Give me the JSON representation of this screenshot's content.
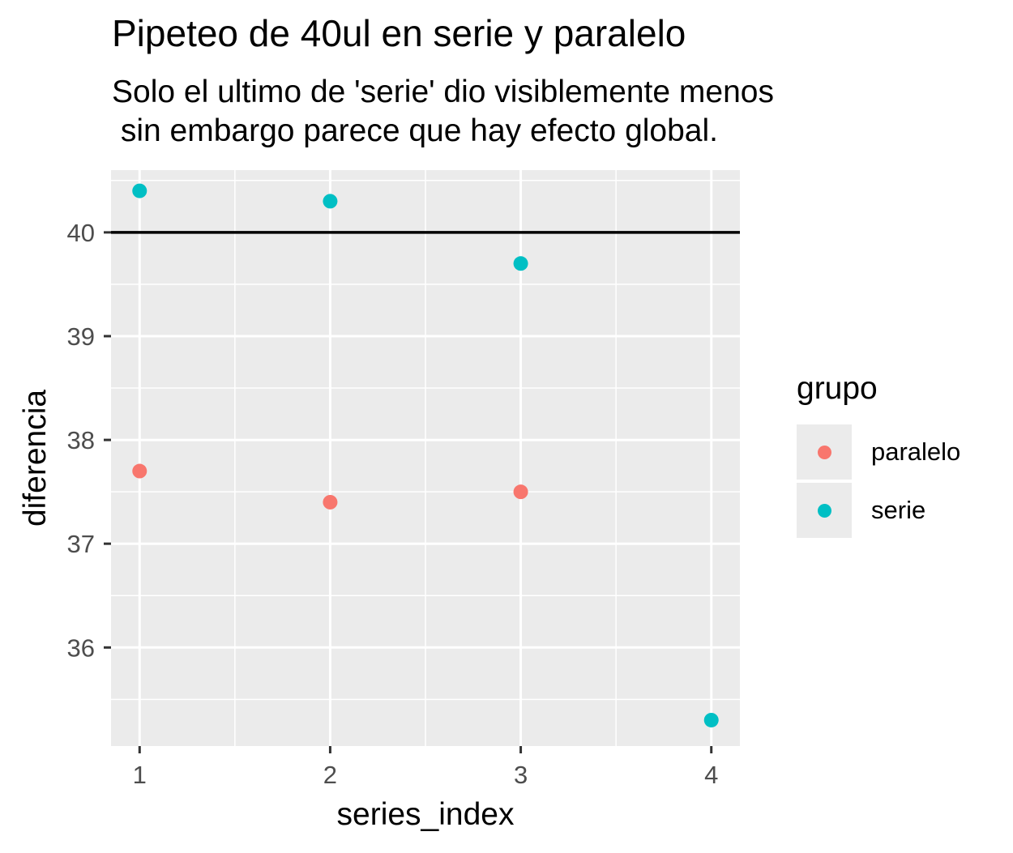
{
  "chart_data": {
    "type": "scatter",
    "title": "Pipeteo de 40ul en serie y paralelo",
    "subtitle": "Solo el ultimo de 'serie' dio visiblemente menos\n sin embargo parece que hay efecto global.",
    "xlabel": "series_index",
    "ylabel": "diferencia",
    "xlim": [
      0.85,
      4.15
    ],
    "ylim": [
      35.05,
      40.6
    ],
    "x_ticks": [
      1,
      2,
      3,
      4
    ],
    "x_tick_labels": [
      "1",
      "2",
      "3",
      "4"
    ],
    "y_ticks": [
      36,
      37,
      38,
      39,
      40
    ],
    "y_tick_labels": [
      "36",
      "37",
      "38",
      "39",
      "40"
    ],
    "hline": 40,
    "legend_title": "grupo",
    "legend_position": "right",
    "series": [
      {
        "name": "paralelo",
        "color": "#F8766D",
        "x": [
          1,
          2,
          3
        ],
        "y": [
          37.7,
          37.4,
          37.5
        ]
      },
      {
        "name": "serie",
        "color": "#00BFC4",
        "x": [
          1,
          2,
          3,
          4
        ],
        "y": [
          40.4,
          40.3,
          39.7,
          35.3
        ]
      }
    ]
  }
}
